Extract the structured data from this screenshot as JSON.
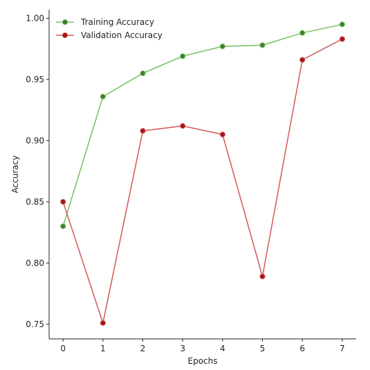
{
  "chart_data": {
    "type": "line",
    "title": "",
    "xlabel": "Epochs",
    "ylabel": "Accuracy",
    "x": [
      0,
      1,
      2,
      3,
      4,
      5,
      6,
      7
    ],
    "xlim": [
      -0.35,
      7.35
    ],
    "ylim": [
      0.738,
      1.007
    ],
    "xticks": [
      "0",
      "1",
      "2",
      "3",
      "4",
      "5",
      "6",
      "7"
    ],
    "yticks": [
      "0.75",
      "0.80",
      "0.85",
      "0.90",
      "0.95",
      "1.00"
    ],
    "grid": false,
    "legend_position": "top-left",
    "series": [
      {
        "name": "Training Accuracy",
        "color": "#7fc26b",
        "marker_color": "#3f7f2f",
        "values": [
          0.83,
          0.936,
          0.955,
          0.969,
          0.977,
          0.978,
          0.988,
          0.995
        ]
      },
      {
        "name": "Validation Accuracy",
        "color": "#d45f5f",
        "marker_color": "#a3171c",
        "values": [
          0.85,
          0.751,
          0.908,
          0.912,
          0.905,
          0.789,
          0.966,
          0.983
        ]
      }
    ]
  }
}
